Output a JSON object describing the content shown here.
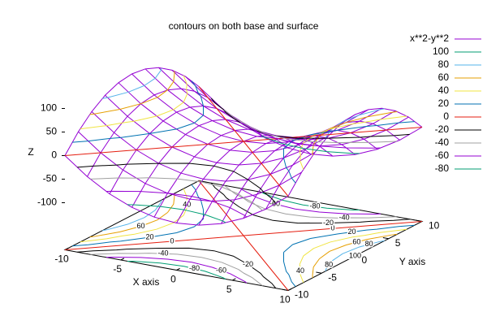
{
  "chart_data": {
    "type": "surface",
    "title": "contours on both base and surface",
    "xlabel": "X axis",
    "ylabel": "Y axis",
    "zlabel": "Z",
    "surface_name": "x**2-y**2",
    "surface_color": "#9400d3",
    "x": [
      -10,
      -8,
      -6,
      -4,
      -2,
      0,
      2,
      4,
      6,
      8,
      10
    ],
    "y": [
      -10,
      -8,
      -6,
      -4,
      -2,
      0,
      2,
      4,
      6,
      8,
      10
    ],
    "z": [
      [
        0,
        -36,
        -64,
        -84,
        -96,
        -100,
        -96,
        -84,
        -64,
        -36,
        0
      ],
      [
        36,
        0,
        -28,
        -48,
        -60,
        -64,
        -60,
        -48,
        -28,
        0,
        36
      ],
      [
        64,
        28,
        0,
        -20,
        -32,
        -36,
        -32,
        -20,
        0,
        28,
        64
      ],
      [
        84,
        48,
        20,
        0,
        -12,
        -16,
        -12,
        0,
        20,
        48,
        84
      ],
      [
        96,
        60,
        32,
        12,
        0,
        -4,
        0,
        12,
        32,
        60,
        96
      ],
      [
        100,
        64,
        36,
        16,
        4,
        0,
        4,
        16,
        36,
        64,
        100
      ],
      [
        96,
        60,
        32,
        12,
        0,
        -4,
        0,
        12,
        32,
        60,
        96
      ],
      [
        84,
        48,
        20,
        0,
        -12,
        -16,
        -12,
        0,
        20,
        48,
        84
      ],
      [
        64,
        28,
        0,
        -20,
        -32,
        -36,
        -32,
        -20,
        0,
        28,
        64
      ],
      [
        36,
        0,
        -28,
        -48,
        -60,
        -64,
        -60,
        -48,
        -28,
        0,
        36
      ],
      [
        0,
        -36,
        -64,
        -84,
        -96,
        -100,
        -96,
        -84,
        -64,
        -36,
        0
      ]
    ],
    "xlim": [
      -10,
      10
    ],
    "ylim": [
      -10,
      10
    ],
    "zlim": [
      -100,
      100
    ],
    "xticks": [
      -10,
      -5,
      0,
      5,
      10
    ],
    "yticks": [
      -10,
      -5,
      0,
      5,
      10
    ],
    "zticks": [
      -100,
      -50,
      0,
      50,
      100
    ],
    "contour_levels": [
      100,
      80,
      60,
      40,
      20,
      0,
      -20,
      -40,
      -60,
      -80
    ],
    "contour_colors": [
      "#009e73",
      "#56b4e9",
      "#e69f00",
      "#f0e442",
      "#0072b2",
      "#e51e10",
      "#000000",
      "#a0a0a0",
      "#9400d3",
      "#009e73"
    ],
    "legend": "top-right"
  }
}
